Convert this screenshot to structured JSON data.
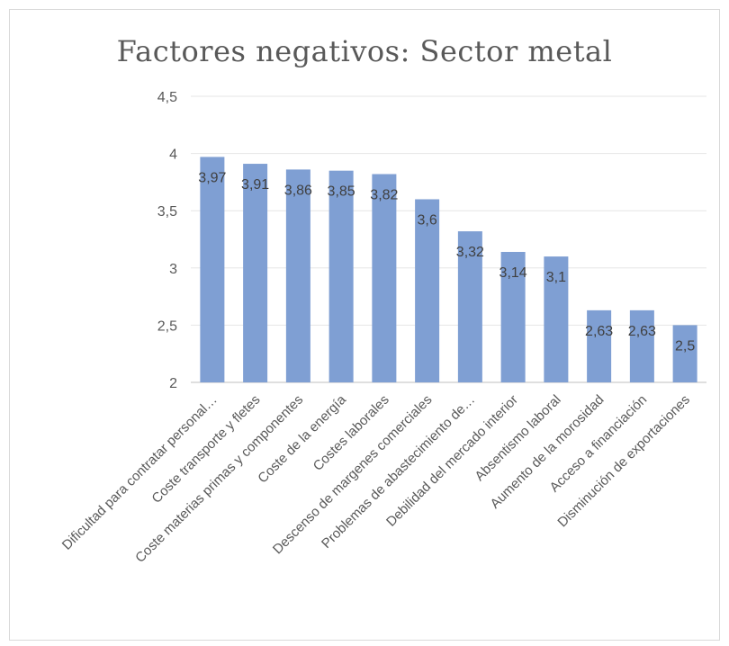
{
  "chart_data": {
    "type": "bar",
    "title": "Factores negativos: Sector metal",
    "xlabel": "",
    "ylabel": "",
    "ylim": [
      2,
      4.5
    ],
    "yticks": [
      "2",
      "2,5",
      "3",
      "3,5",
      "4",
      "4,5"
    ],
    "ytick_values": [
      2,
      2.5,
      3,
      3.5,
      4,
      4.5
    ],
    "grid": true,
    "legend": "none",
    "bar_color": "#7f9fd3",
    "categories": [
      "Dificultad  para contratar personal…",
      "Coste transporte y fletes",
      "Coste materias primas y componentes",
      "Coste de la energía",
      "Costes laborales",
      "Descenso de margenes comerciales",
      "Problemas de abastecimiento  de…",
      "Debilidad  del mercado interior",
      "Absentismo laboral",
      "Aumento de la morosidad",
      "Acceso a  financiación",
      "Disminución  de exportaciones"
    ],
    "values": [
      3.97,
      3.91,
      3.86,
      3.85,
      3.82,
      3.6,
      3.32,
      3.14,
      3.1,
      2.63,
      2.63,
      2.5
    ],
    "data_labels": [
      "3,97",
      "3,91",
      "3,86",
      "3,85",
      "3,82",
      "3,6",
      "3,32",
      "3,14",
      "3,1",
      "2,63",
      "2,63",
      "2,5"
    ]
  }
}
